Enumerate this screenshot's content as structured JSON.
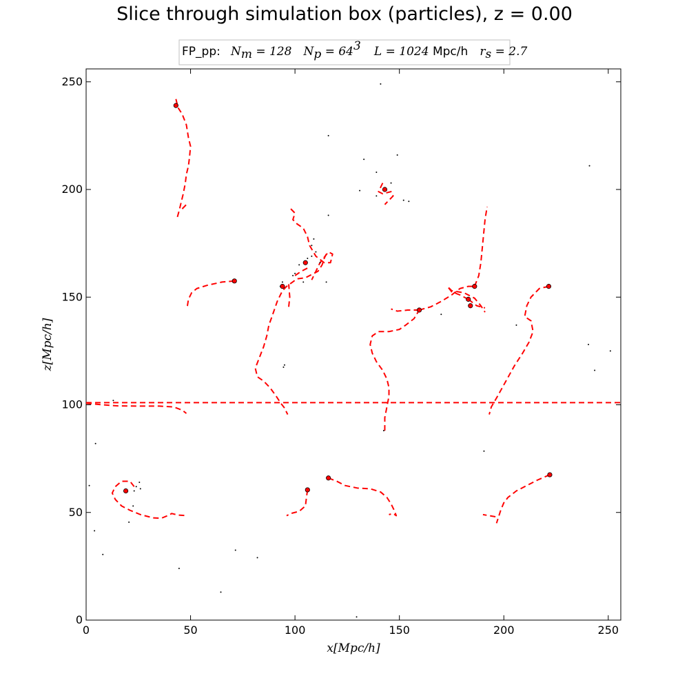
{
  "title": "Slice through simulation box (particles), z = 0.00",
  "info_box": {
    "label": "FP_pp:",
    "nm_sym": "N",
    "nm_sub": "m",
    "nm_val": " = 128",
    "np_sym": "N",
    "np_sub": "p",
    "np_val": " = 64",
    "np_exp": "3",
    "l_sym": "L",
    "l_val": " = 1024 ",
    "l_unit": "Mpc/h",
    "rs_sym": "r",
    "rs_sub": "s",
    "rs_val": " = 2.7"
  },
  "chart_data": {
    "type": "scatter",
    "title": "Slice through simulation box (particles), z = 0.00",
    "xlabel": "x[Mpc/h]",
    "ylabel": "z[Mpc/h]",
    "xlim": [
      0,
      256
    ],
    "ylim": [
      0,
      256
    ],
    "xticks": [
      0,
      50,
      100,
      150,
      200,
      250
    ],
    "yticks": [
      0,
      50,
      100,
      150,
      200,
      250
    ],
    "grid": false,
    "colors": {
      "track": "#ff0000",
      "particle": "#ff0000",
      "dots": "#000000"
    },
    "particles": [
      [
        43,
        239
      ],
      [
        71,
        157.5
      ],
      [
        94,
        155
      ],
      [
        105,
        166
      ],
      [
        143,
        200
      ],
      [
        159.5,
        144
      ],
      [
        186,
        155
      ],
      [
        183,
        149
      ],
      [
        184,
        146
      ],
      [
        221.5,
        155
      ],
      [
        19,
        60
      ],
      [
        106,
        60.5
      ],
      [
        116,
        66
      ],
      [
        222,
        67.5
      ]
    ],
    "tracks": [
      [
        [
          43,
          242
        ],
        [
          44,
          238
        ],
        [
          46,
          235
        ],
        [
          48,
          230
        ],
        [
          49,
          224
        ],
        [
          50,
          220
        ],
        [
          49.5,
          215
        ],
        [
          49,
          211
        ],
        [
          48,
          207
        ],
        [
          47.5,
          203
        ],
        [
          46.5,
          198
        ],
        [
          45.5,
          194
        ],
        [
          44.5,
          190
        ],
        [
          43.5,
          186.5
        ]
      ],
      [
        [
          46,
          191
        ],
        [
          48,
          193
        ]
      ],
      [
        [
          71,
          157.5
        ],
        [
          65,
          157
        ],
        [
          58,
          155.5
        ],
        [
          53,
          154
        ],
        [
          50.5,
          152
        ],
        [
          49,
          149
        ],
        [
          48.5,
          146
        ],
        [
          48,
          145
        ]
      ],
      [
        [
          0,
          101
        ],
        [
          256,
          101
        ]
      ],
      [
        [
          0,
          100.7
        ],
        [
          8,
          100
        ],
        [
          15,
          99.5
        ],
        [
          25,
          99.4
        ],
        [
          35,
          99.4
        ],
        [
          42,
          99
        ],
        [
          46,
          97.5
        ],
        [
          48,
          96
        ]
      ],
      [
        [
          115,
          170
        ],
        [
          114,
          168
        ],
        [
          113,
          165
        ],
        [
          111,
          162
        ],
        [
          108,
          160.5
        ],
        [
          105,
          159
        ],
        [
          101,
          158.5
        ],
        [
          96,
          155
        ],
        [
          94,
          153
        ],
        [
          91.5,
          148
        ],
        [
          89,
          141
        ],
        [
          87.5,
          137
        ],
        [
          86.5,
          132
        ],
        [
          85,
          127
        ],
        [
          83,
          122
        ],
        [
          81,
          117
        ],
        [
          82,
          113
        ],
        [
          85,
          111
        ],
        [
          88,
          108
        ],
        [
          91,
          104
        ],
        [
          93,
          101
        ],
        [
          95,
          98.5
        ],
        [
          96.5,
          95.5
        ]
      ],
      [
        [
          97,
          145.5
        ],
        [
          97.5,
          150
        ],
        [
          97,
          156
        ]
      ],
      [
        [
          98,
          191
        ],
        [
          100,
          189
        ],
        [
          99,
          186
        ],
        [
          101,
          184
        ],
        [
          104,
          182
        ],
        [
          106,
          178
        ],
        [
          107,
          174
        ],
        [
          110,
          169
        ],
        [
          114,
          166
        ],
        [
          117,
          166
        ],
        [
          118,
          170
        ],
        [
          116,
          171
        ],
        [
          112,
          166
        ],
        [
          110,
          162
        ],
        [
          108,
          158
        ]
      ],
      [
        [
          100,
          160
        ],
        [
          103,
          162
        ],
        [
          107,
          164
        ]
      ],
      [
        [
          142,
          203
        ],
        [
          140,
          199
        ],
        [
          142,
          198
        ],
        [
          146,
          199
        ],
        [
          147,
          197
        ],
        [
          145,
          195
        ],
        [
          143,
          193
        ]
      ],
      [
        [
          143,
          88
        ],
        [
          143,
          94
        ],
        [
          144,
          99
        ],
        [
          145,
          104
        ],
        [
          145,
          108
        ],
        [
          144,
          112
        ],
        [
          142,
          116
        ],
        [
          139,
          120
        ],
        [
          137,
          124
        ],
        [
          136,
          128
        ],
        [
          137,
          132
        ],
        [
          140,
          134
        ],
        [
          145,
          134
        ],
        [
          150,
          135
        ],
        [
          153,
          137
        ],
        [
          157,
          140
        ],
        [
          159.5,
          144
        ]
      ],
      [
        [
          159.5,
          144
        ],
        [
          154,
          144
        ],
        [
          149,
          143.5
        ],
        [
          146,
          144.5
        ]
      ],
      [
        [
          159.5,
          144
        ],
        [
          165,
          145.5
        ],
        [
          170,
          148
        ],
        [
          175,
          151
        ],
        [
          179,
          154
        ],
        [
          183,
          155
        ],
        [
          186,
          155
        ]
      ],
      [
        [
          186,
          155
        ],
        [
          188,
          160
        ],
        [
          189,
          166
        ],
        [
          189.5,
          171
        ],
        [
          190,
          176
        ],
        [
          190.5,
          181
        ],
        [
          191,
          186
        ],
        [
          192,
          192
        ]
      ],
      [
        [
          183,
          149
        ],
        [
          179,
          151
        ],
        [
          175,
          152.5
        ],
        [
          173,
          155
        ],
        [
          175,
          153
        ],
        [
          181,
          152
        ],
        [
          186,
          149.5
        ],
        [
          189,
          146
        ],
        [
          191,
          143
        ]
      ],
      [
        [
          183,
          149
        ],
        [
          187,
          146
        ],
        [
          191,
          145
        ]
      ],
      [
        [
          221.5,
          155
        ],
        [
          217,
          154
        ],
        [
          213,
          150
        ],
        [
          211,
          146
        ],
        [
          210,
          141
        ],
        [
          213,
          139
        ],
        [
          214,
          134
        ],
        [
          212,
          129
        ],
        [
          209,
          124
        ],
        [
          205,
          118
        ],
        [
          201,
          111
        ],
        [
          197,
          104
        ],
        [
          194,
          99
        ],
        [
          193,
          95.5
        ]
      ],
      [
        [
          23,
          62
        ],
        [
          21,
          64.5
        ],
        [
          17,
          64.5
        ],
        [
          14,
          62
        ],
        [
          12.5,
          59
        ],
        [
          14,
          56
        ],
        [
          17,
          53
        ],
        [
          21,
          51
        ],
        [
          26,
          49
        ],
        [
          32,
          47.5
        ],
        [
          36,
          47.3
        ],
        [
          39,
          48.5
        ],
        [
          41,
          49.5
        ],
        [
          44,
          48.8
        ],
        [
          47,
          48.6
        ]
      ],
      [
        [
          106,
          60.5
        ],
        [
          105.5,
          57
        ],
        [
          105,
          53
        ],
        [
          102,
          50.5
        ],
        [
          98,
          49.5
        ],
        [
          96,
          48.5
        ]
      ],
      [
        [
          116,
          66
        ],
        [
          120,
          64.5
        ],
        [
          124,
          62.5
        ],
        [
          130,
          61.3
        ],
        [
          136,
          61
        ],
        [
          141,
          59.5
        ],
        [
          144,
          57
        ],
        [
          146,
          54
        ],
        [
          147.5,
          51
        ],
        [
          148.5,
          48.5
        ],
        [
          147,
          49.5
        ],
        [
          145,
          49
        ]
      ],
      [
        [
          222,
          67.5
        ],
        [
          216,
          65
        ],
        [
          211,
          62.5
        ],
        [
          206,
          60
        ],
        [
          202,
          57
        ],
        [
          200,
          54.5
        ],
        [
          198.5,
          51
        ],
        [
          197.5,
          48
        ],
        [
          196.5,
          45
        ]
      ],
      [
        [
          196,
          48
        ],
        [
          193,
          48.5
        ],
        [
          190,
          49
        ]
      ]
    ],
    "dots": [
      [
        141,
        249
      ],
      [
        116,
        225
      ],
      [
        133,
        214
      ],
      [
        149,
        216
      ],
      [
        241,
        211
      ],
      [
        139,
        208
      ],
      [
        131,
        199.5
      ],
      [
        146,
        203
      ],
      [
        152,
        195
      ],
      [
        154.5,
        194.5
      ],
      [
        139,
        197
      ],
      [
        116,
        188
      ],
      [
        109,
        177
      ],
      [
        108,
        174
      ],
      [
        110,
        171
      ],
      [
        108,
        169
      ],
      [
        106,
        168
      ],
      [
        102,
        165
      ],
      [
        112,
        166
      ],
      [
        100,
        161
      ],
      [
        99,
        160
      ],
      [
        104,
        157
      ],
      [
        115,
        157
      ],
      [
        94,
        157
      ],
      [
        93,
        155
      ],
      [
        170,
        142
      ],
      [
        206,
        137
      ],
      [
        240.5,
        128
      ],
      [
        251,
        125
      ],
      [
        243.5,
        116
      ],
      [
        95,
        118.5
      ],
      [
        94.5,
        117.5
      ],
      [
        13,
        102
      ],
      [
        142.5,
        88
      ],
      [
        4.5,
        82
      ],
      [
        190.5,
        78.5
      ],
      [
        1.5,
        62.5
      ],
      [
        23,
        60
      ],
      [
        24,
        62
      ],
      [
        25.5,
        64
      ],
      [
        26,
        61
      ],
      [
        22.5,
        53
      ],
      [
        20.5,
        45.5
      ],
      [
        4,
        41.5
      ],
      [
        8,
        30.5
      ],
      [
        71.5,
        32.5
      ],
      [
        82,
        29
      ],
      [
        44.5,
        24
      ],
      [
        64.5,
        13
      ],
      [
        129.5,
        1.5
      ]
    ]
  }
}
